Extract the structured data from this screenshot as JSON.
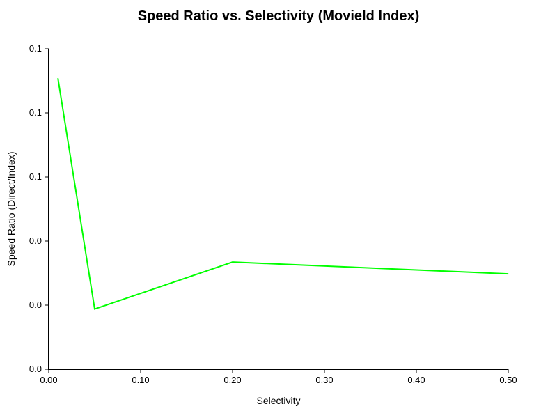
{
  "chart_data": {
    "type": "line",
    "title": "Speed Ratio vs. Selectivity (MovieId Index)",
    "xlabel": "Selectivity",
    "ylabel": "Speed Ratio (Direct/Index)",
    "xlim": [
      0.0,
      0.5
    ],
    "ylim": [
      0.0,
      0.125
    ],
    "grid": false,
    "x_ticks": [
      {
        "value": 0.0,
        "label": "0.00"
      },
      {
        "value": 0.1,
        "label": "0.10"
      },
      {
        "value": 0.2,
        "label": "0.20"
      },
      {
        "value": 0.3,
        "label": "0.30"
      },
      {
        "value": 0.4,
        "label": "0.40"
      },
      {
        "value": 0.5,
        "label": "0.50"
      }
    ],
    "y_ticks": [
      {
        "value": 0.0,
        "label": "0.0"
      },
      {
        "value": 0.025,
        "label": "0.0"
      },
      {
        "value": 0.05,
        "label": "0.0"
      },
      {
        "value": 0.075,
        "label": "0.1"
      },
      {
        "value": 0.1,
        "label": "0.1"
      },
      {
        "value": 0.125,
        "label": "0.1"
      }
    ],
    "series": [
      {
        "color": "#00ff00",
        "x": [
          0.01,
          0.05,
          0.2,
          0.5
        ],
        "y": [
          0.1135,
          0.0235,
          0.0418,
          0.0372
        ]
      }
    ]
  }
}
